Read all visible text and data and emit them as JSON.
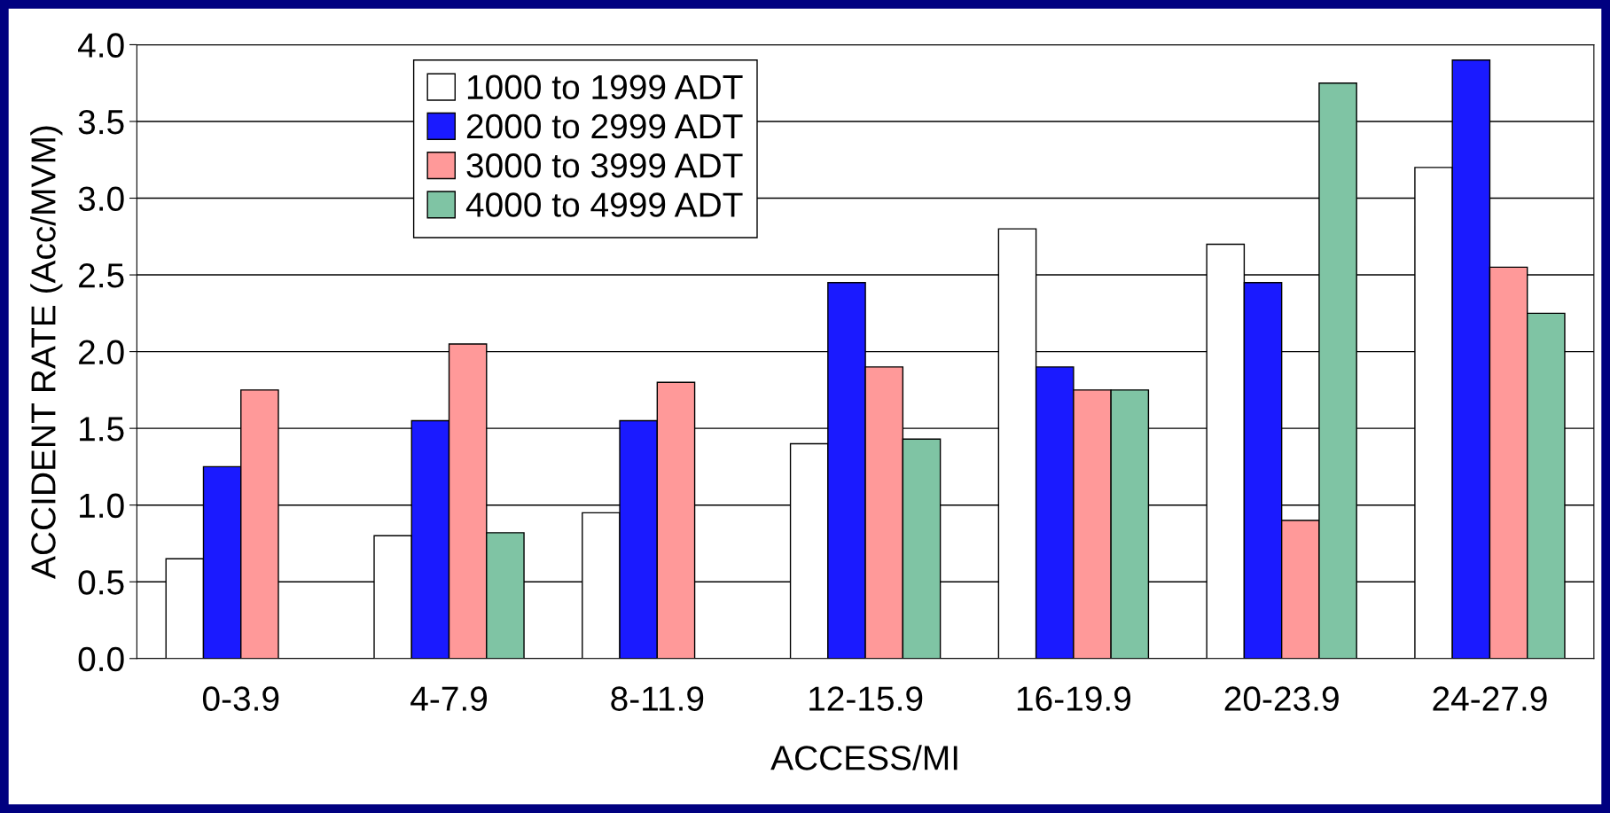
{
  "chart_data": {
    "type": "bar",
    "xlabel": "ACCESS/MI",
    "ylabel": "ACCIDENT RATE (Acc/MVM)",
    "categories": [
      "0-3.9",
      "4-7.9",
      "8-11.9",
      "12-15.9",
      "16-19.9",
      "20-23.9",
      "24-27.9"
    ],
    "series": [
      {
        "name": "1000 to 1999 ADT",
        "color": "#ffffff",
        "values": [
          0.65,
          0.8,
          0.95,
          1.4,
          2.8,
          2.7,
          3.2
        ]
      },
      {
        "name": "2000 to 2999 ADT",
        "color": "#1a1aff",
        "values": [
          1.25,
          1.55,
          1.55,
          2.45,
          1.9,
          2.45,
          3.9
        ]
      },
      {
        "name": "3000 to 3999 ADT",
        "color": "#ff9999",
        "values": [
          1.75,
          2.05,
          1.8,
          1.9,
          1.75,
          0.9,
          2.55
        ]
      },
      {
        "name": "4000 to 4999 ADT",
        "color": "#7fc4a4",
        "values": [
          null,
          0.82,
          null,
          1.43,
          1.75,
          3.75,
          2.25
        ]
      }
    ],
    "ylim": [
      0,
      4
    ],
    "yticks": [
      {
        "value": 0,
        "label": "0.0"
      },
      {
        "value": 0.5,
        "label": "0.5"
      },
      {
        "value": 1,
        "label": "1.0"
      },
      {
        "value": 1.5,
        "label": "1.5"
      },
      {
        "value": 2,
        "label": "2.0"
      },
      {
        "value": 2.5,
        "label": "2.5"
      },
      {
        "value": 3,
        "label": "3.0"
      },
      {
        "value": 3.5,
        "label": "3.5"
      },
      {
        "value": 4,
        "label": "4.0"
      }
    ],
    "grid": "y",
    "legend": "top left"
  }
}
